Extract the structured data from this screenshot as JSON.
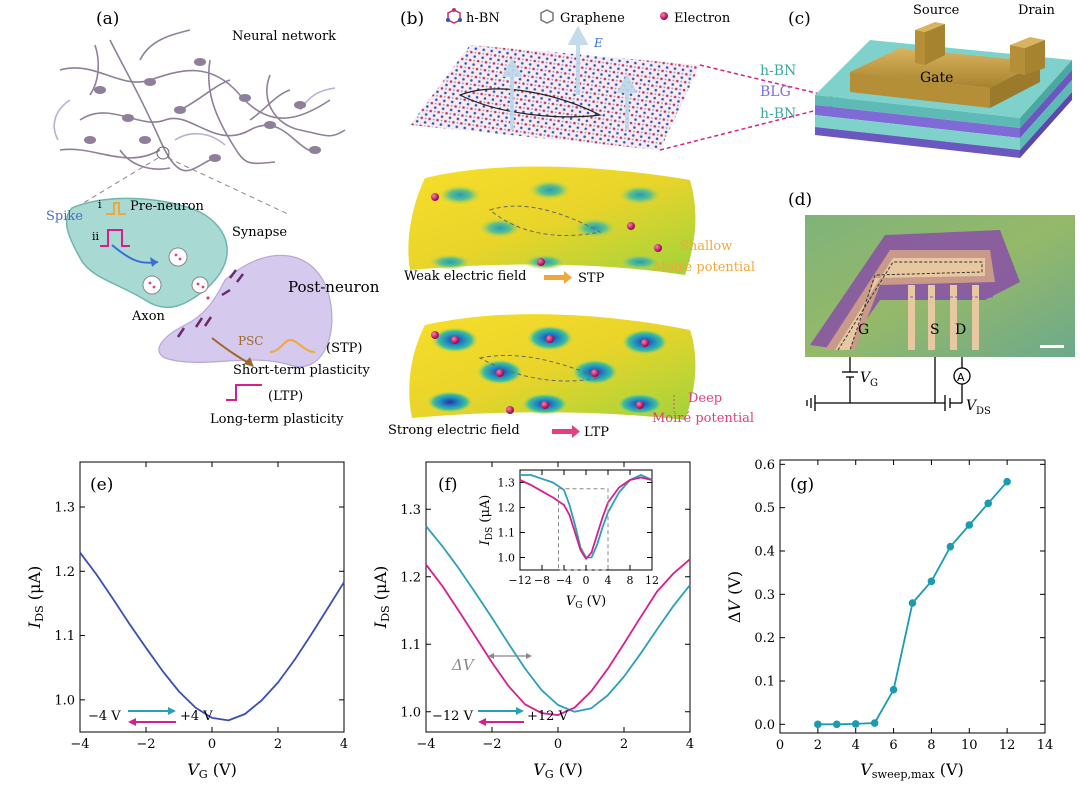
{
  "colors": {
    "blue": "#3a4fb5",
    "magenta": "#d61f8f",
    "teal": "#2aa0b8",
    "tealdot": "#1b9bb0",
    "hbn": "#6fc7c3",
    "blg": "#7f6bd6",
    "gold": "#c9a23c",
    "neuron": "#8f7f9a",
    "axon": "#6fb6ad",
    "postneuron": "#b8a6d9",
    "orange": "#f2a838",
    "pink": "#e0407f"
  },
  "panel_a": {
    "label": "(a)",
    "neural_network": "Neural network",
    "spike": "Spike",
    "spike_i": "i",
    "spike_ii": "ii",
    "pre_neuron": "Pre-neuron",
    "synapse": "Synapse",
    "post_neuron": "Post-neuron",
    "axon": "Axon",
    "psc": "PSC",
    "stp": "(STP)",
    "stp_long": "Short-term plasticity",
    "ltp": "(LTP)",
    "ltp_long": "Long-term plasticity"
  },
  "panel_b": {
    "label": "(b)",
    "legend_hbn": "h-BN",
    "legend_graphene": "Graphene",
    "legend_electron": "Electron",
    "field": "E",
    "weak": "Weak electric field",
    "stp": "STP",
    "shallow1": "Shallow",
    "shallow2": "Moiré potential",
    "strong": "Strong electric field",
    "ltp": "LTP",
    "deep1": "Deep",
    "deep2": "Moiré potential"
  },
  "panel_c": {
    "label": "(c)",
    "source": "Source",
    "drain": "Drain",
    "gate": "Gate",
    "hbn_top": "h-BN",
    "blg": "BLG",
    "hbn_bot": "h-BN"
  },
  "panel_d": {
    "label": "(d)",
    "g": "G",
    "s": "S",
    "d": "D",
    "vg": "V",
    "vg_sub": "G",
    "ammeter": "A",
    "vds": "V",
    "vds_sub": "DS"
  },
  "chart_data": [
    {
      "type": "line",
      "panel": "(e)",
      "xlabel": "V_G (V)",
      "ylabel": "I_DS (μA)",
      "xlim": [
        -4,
        4
      ],
      "ylim": [
        0.95,
        1.37
      ],
      "xticks": [
        "−4",
        "−2",
        "0",
        "2",
        "4"
      ],
      "yticks": [
        "1.0",
        "1.1",
        "1.2",
        "1.3"
      ],
      "series": [
        {
          "x": [
            -4,
            -3.5,
            -3,
            -2.5,
            -2,
            -1.5,
            -1,
            -0.5,
            0,
            0.5,
            1,
            1.5,
            2,
            2.5,
            3,
            3.5,
            4
          ],
          "y": [
            1.229,
            1.195,
            1.157,
            1.118,
            1.081,
            1.045,
            1.013,
            0.988,
            0.972,
            0.968,
            0.978,
            0.999,
            1.027,
            1.062,
            1.101,
            1.142,
            1.183
          ]
        }
      ],
      "annotation": {
        "from": "−4 V",
        "to": "+4 V"
      }
    },
    {
      "type": "line",
      "panel": "(f)",
      "xlabel": "V_G (V)",
      "ylabel": "I_DS (μA)",
      "xlim": [
        -4,
        4
      ],
      "ylim": [
        0.97,
        1.37
      ],
      "xticks": [
        "−4",
        "−2",
        "0",
        "2",
        "4"
      ],
      "yticks": [
        "1.0",
        "1.1",
        "1.2",
        "1.3"
      ],
      "series": [
        {
          "color": "blue",
          "x": [
            -4,
            -3.5,
            -3,
            -2.5,
            -2,
            -1.5,
            -1,
            -0.5,
            0,
            0.5,
            1,
            1.5,
            2,
            2.5,
            3,
            3.5,
            4
          ],
          "y": [
            1.275,
            1.245,
            1.212,
            1.176,
            1.139,
            1.101,
            1.064,
            1.032,
            1.01,
            1.0,
            1.005,
            1.024,
            1.052,
            1.086,
            1.122,
            1.157,
            1.188
          ]
        },
        {
          "color": "magenta",
          "x": [
            -4,
            -3.5,
            -3,
            -2.5,
            -2,
            -1.5,
            -1,
            -0.5,
            0,
            0.5,
            1,
            1.5,
            2,
            2.5,
            3,
            3.5,
            4
          ],
          "y": [
            1.218,
            1.186,
            1.149,
            1.111,
            1.073,
            1.038,
            1.011,
            0.998,
            0.995,
            1.006,
            1.03,
            1.063,
            1.101,
            1.14,
            1.178,
            1.205,
            1.226
          ]
        }
      ],
      "annotation": {
        "delta": "ΔV",
        "from": "−12 V",
        "to": "+12 V"
      },
      "inset": {
        "xlabel": "V_G (V)",
        "ylabel": "I_DS (μA)",
        "xlim": [
          -12,
          12
        ],
        "ylim": [
          0.95,
          1.35
        ],
        "xticks": [
          "−12",
          "−8",
          "−4",
          "0",
          "4",
          "8",
          "12"
        ],
        "yticks": [
          "1.0",
          "1.1",
          "1.2",
          "1.3"
        ],
        "series": [
          {
            "color": "blue",
            "x": [
              -12,
              -10,
              -8,
              -6,
              -4,
              -3,
              -2,
              -1,
              0,
              1,
              2,
              3,
              4,
              6,
              8,
              10,
              12
            ],
            "y": [
              1.33,
              1.33,
              1.315,
              1.3,
              1.27,
              1.21,
              1.13,
              1.04,
              1.0,
              1.0,
              1.05,
              1.12,
              1.18,
              1.26,
              1.31,
              1.33,
              1.31
            ]
          },
          {
            "color": "magenta",
            "x": [
              -12,
              -10,
              -8,
              -6,
              -4,
              -3,
              -2,
              -1,
              0,
              1,
              2,
              3,
              4,
              6,
              8,
              10,
              12
            ],
            "y": [
              1.31,
              1.29,
              1.265,
              1.24,
              1.21,
              1.17,
              1.1,
              1.03,
              0.995,
              1.02,
              1.09,
              1.16,
              1.22,
              1.28,
              1.31,
              1.32,
              1.31
            ]
          }
        ],
        "box": {
          "xmin": -5,
          "xmax": 4,
          "ymin": 0.95,
          "ymax": 1.275
        }
      }
    },
    {
      "type": "line",
      "panel": "(g)",
      "xlabel": "V_sweep,max (V)",
      "ylabel": "ΔV (V)",
      "xlim": [
        0,
        14
      ],
      "ylim": [
        -0.02,
        0.61
      ],
      "xticks": [
        "0",
        "2",
        "4",
        "6",
        "8",
        "10",
        "12",
        "14"
      ],
      "yticks": [
        "0.0",
        "0.1",
        "0.2",
        "0.3",
        "0.4",
        "0.5",
        "0.6"
      ],
      "series": [
        {
          "x": [
            2,
            3,
            4,
            5,
            6,
            7,
            8,
            9,
            10,
            11,
            12
          ],
          "y": [
            0.0,
            0.0,
            0.001,
            0.003,
            0.08,
            0.28,
            0.33,
            0.41,
            0.46,
            0.51,
            0.56
          ]
        }
      ]
    }
  ]
}
